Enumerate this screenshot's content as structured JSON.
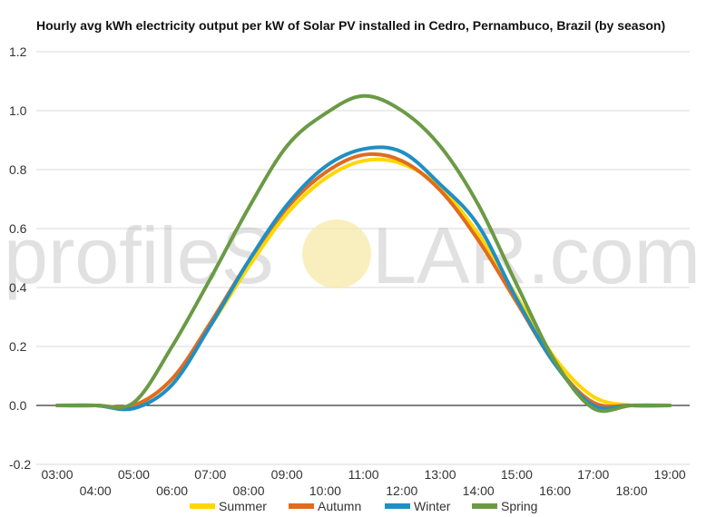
{
  "chart_data": {
    "type": "line",
    "title": "Hourly avg kWh electricity output per kW of Solar PV installed in Cedro, Pernambuco, Brazil (by season)",
    "xlabel": "",
    "ylabel": "",
    "ylim": [
      -0.2,
      1.2
    ],
    "yticks": [
      "1.2",
      "1.0",
      "0.8",
      "0.6",
      "0.4",
      "0.2",
      "0.0",
      "-0.2"
    ],
    "ytick_values": [
      1.2,
      1.0,
      0.8,
      0.6,
      0.4,
      0.2,
      0.0,
      -0.2
    ],
    "x": [
      "03:00",
      "04:00",
      "05:00",
      "06:00",
      "07:00",
      "08:00",
      "09:00",
      "10:00",
      "11:00",
      "12:00",
      "13:00",
      "14:00",
      "15:00",
      "16:00",
      "17:00",
      "18:00",
      "19:00"
    ],
    "grid": true,
    "legend": "bottom",
    "series": [
      {
        "name": "Summer",
        "color": "#ffd700",
        "values": [
          0.0,
          0.0,
          0.0,
          0.09,
          0.27,
          0.47,
          0.65,
          0.77,
          0.83,
          0.82,
          0.74,
          0.58,
          0.37,
          0.16,
          0.03,
          0.0,
          0.0
        ]
      },
      {
        "name": "Autumn",
        "color": "#e06c1f",
        "values": [
          0.0,
          0.0,
          0.0,
          0.09,
          0.28,
          0.49,
          0.67,
          0.79,
          0.85,
          0.83,
          0.73,
          0.56,
          0.35,
          0.14,
          0.01,
          0.0,
          0.0
        ]
      },
      {
        "name": "Winter",
        "color": "#1f8fc4",
        "values": [
          0.0,
          0.0,
          -0.01,
          0.07,
          0.27,
          0.49,
          0.68,
          0.81,
          0.87,
          0.86,
          0.75,
          0.61,
          0.36,
          0.14,
          0.0,
          0.0,
          0.0
        ]
      },
      {
        "name": "Spring",
        "color": "#6b9a45",
        "values": [
          0.0,
          0.0,
          0.01,
          0.2,
          0.43,
          0.67,
          0.88,
          0.99,
          1.05,
          1.0,
          0.88,
          0.68,
          0.41,
          0.15,
          -0.01,
          0.0,
          0.0
        ]
      }
    ]
  },
  "watermark": {
    "left": "profileS",
    "right": "LAR.com",
    "sun_color": "#f7e9a8"
  }
}
